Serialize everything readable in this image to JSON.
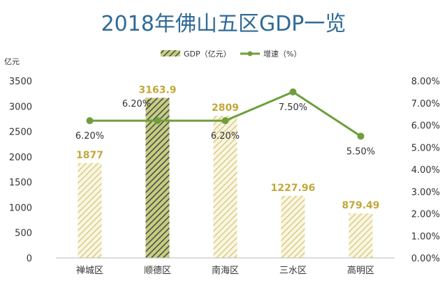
{
  "chart_data": {
    "type": "bar",
    "title": "2018年佛山五区GDP一览",
    "y_unit": "亿元",
    "categories": [
      "禅城区",
      "顺德区",
      "南海区",
      "三水区",
      "高明区"
    ],
    "series": [
      {
        "name": "GDP（亿元）",
        "type": "bar",
        "values": [
          1877,
          3163.9,
          2809,
          1227.96,
          879.49
        ],
        "value_labels": [
          "1877",
          "3163.9",
          "2809",
          "1227.96",
          "879.49"
        ],
        "highlight_index": 1
      },
      {
        "name": "增速（%）",
        "type": "line",
        "axis": "right",
        "values": [
          6.2,
          6.2,
          6.2,
          7.5,
          5.5
        ],
        "value_labels": [
          "6.20%",
          "6.20%",
          "6.20%",
          "7.50%",
          "5.50%"
        ]
      }
    ],
    "ylim": [
      0,
      3500
    ],
    "yticks": [
      "0",
      "500",
      "1000",
      "1500",
      "2000",
      "2500",
      "3000",
      "3500"
    ],
    "y2lim": [
      0,
      8
    ],
    "y2ticks": [
      "0.00%",
      "1.00%",
      "2.00%",
      "3.00%",
      "4.00%",
      "5.00%",
      "6.00%",
      "7.00%",
      "8.00%"
    ],
    "legend_position": "top-center",
    "grid": false,
    "colors": {
      "bar_stripe": "#d9cc86",
      "bar_highlight_stripe": "#3d4a52",
      "line": "#6f9e3d",
      "title": "#2f6a96",
      "label": "#c2a83a"
    }
  }
}
